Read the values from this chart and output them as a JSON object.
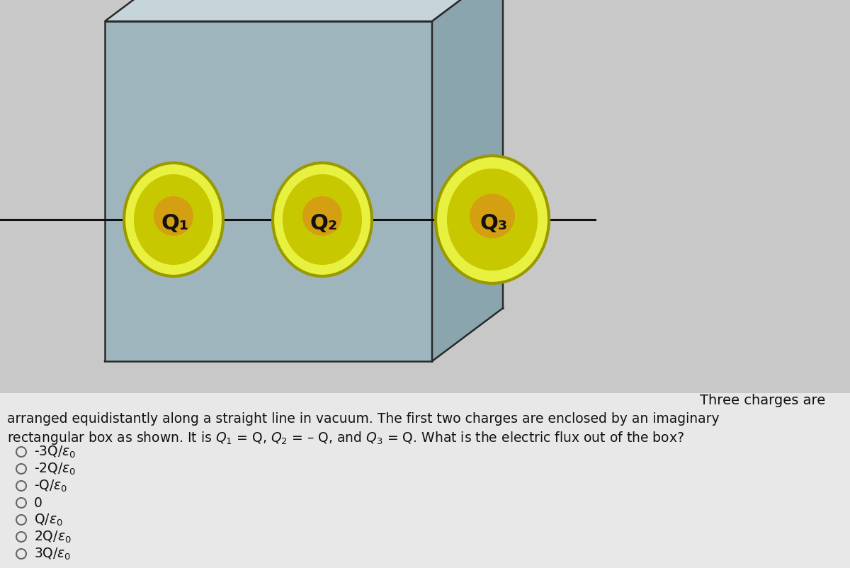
{
  "bg_top_color": "#c8c8c8",
  "bg_bottom_color": "#e8e8e8",
  "box_front_color": "#9eb5be",
  "box_top_color": "#c5d5da",
  "box_right_color": "#8aa5ae",
  "box_edge_color": "#2a2a2a",
  "charge_yellow_bright": "#e8f040",
  "charge_yellow_mid": "#c8c800",
  "charge_yellow_dark": "#b09000",
  "charge_orange_center": "#e07820",
  "charge_text_color": "#111111",
  "line_color": "#111111",
  "text_color": "#111111",
  "radio_color": "#666666",
  "answer_choices": [
    "-3Q/ε₀",
    "-2Q/ε₀",
    "-Q/ε₀",
    "0",
    "Q/ε₀",
    "2Q/ε₀",
    "3Q/ε₀"
  ],
  "charge_labels": [
    "Q₁",
    "Q₂",
    "Q₃"
  ],
  "figsize": [
    12.0,
    8.02
  ],
  "dpi": 100
}
